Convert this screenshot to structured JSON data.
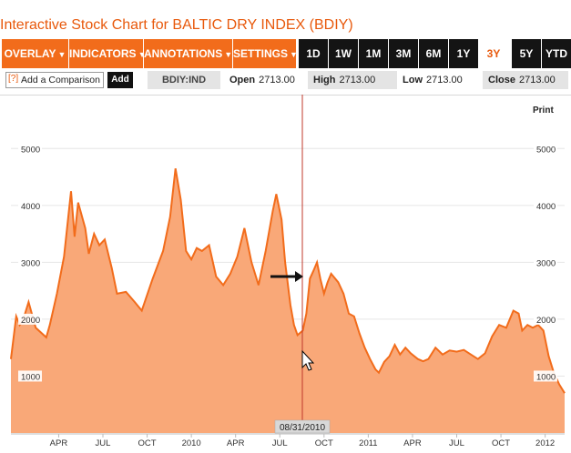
{
  "page": {
    "title": "Interactive Stock Chart for BALTIC DRY INDEX (BDIY)"
  },
  "toolbar": {
    "menus": [
      {
        "label": "OVERLAY",
        "icon": "chevron-down-icon"
      },
      {
        "label": "INDICATORS",
        "icon": "chevron-down-icon"
      },
      {
        "label": "ANNOTATIONS",
        "icon": "chevron-down-icon"
      },
      {
        "label": "SETTINGS",
        "icon": "chevron-down-icon"
      }
    ],
    "ranges": [
      "1D",
      "1W",
      "1M",
      "3M",
      "6M",
      "1Y",
      "3Y",
      "5Y",
      "YTD"
    ],
    "active_range": "3Y",
    "accent_color": "#f26c1b"
  },
  "infobar": {
    "help": "[?]",
    "compare_text": "Add a Comparison",
    "add_label": "Add",
    "ticker": "BDIY:IND",
    "open_label": "Open",
    "open_value": "2713.00",
    "high_label": "High",
    "high_value": "2713.00",
    "low_label": "Low",
    "low_value": "2713.00",
    "close_label": "Close",
    "close_value": "2713.00"
  },
  "print_label": "Print",
  "crosshair": {
    "date_label": "08/31/2010",
    "value": 2713
  },
  "chart_data": {
    "type": "area",
    "series": [
      {
        "values": [
          {
            "t": 2008.98,
            "v": 1300
          },
          {
            "t": 2009.01,
            "v": 2050
          },
          {
            "t": 2009.03,
            "v": 1900
          },
          {
            "t": 2009.05,
            "v": 2000
          },
          {
            "t": 2009.08,
            "v": 2300
          },
          {
            "t": 2009.12,
            "v": 1850
          },
          {
            "t": 2009.18,
            "v": 1680
          },
          {
            "t": 2009.2,
            "v": 1900
          },
          {
            "t": 2009.24,
            "v": 2450
          },
          {
            "t": 2009.28,
            "v": 3100
          },
          {
            "t": 2009.32,
            "v": 4250
          },
          {
            "t": 2009.34,
            "v": 3450
          },
          {
            "t": 2009.36,
            "v": 4050
          },
          {
            "t": 2009.4,
            "v": 3600
          },
          {
            "t": 2009.42,
            "v": 3150
          },
          {
            "t": 2009.45,
            "v": 3500
          },
          {
            "t": 2009.48,
            "v": 3300
          },
          {
            "t": 2009.51,
            "v": 3400
          },
          {
            "t": 2009.55,
            "v": 2900
          },
          {
            "t": 2009.58,
            "v": 2450
          },
          {
            "t": 2009.63,
            "v": 2480
          },
          {
            "t": 2009.68,
            "v": 2300
          },
          {
            "t": 2009.72,
            "v": 2150
          },
          {
            "t": 2009.78,
            "v": 2700
          },
          {
            "t": 2009.84,
            "v": 3200
          },
          {
            "t": 2009.88,
            "v": 3800
          },
          {
            "t": 2009.91,
            "v": 4650
          },
          {
            "t": 2009.94,
            "v": 4100
          },
          {
            "t": 2009.97,
            "v": 3200
          },
          {
            "t": 2010.0,
            "v": 3050
          },
          {
            "t": 2010.03,
            "v": 3250
          },
          {
            "t": 2010.06,
            "v": 3200
          },
          {
            "t": 2010.1,
            "v": 3300
          },
          {
            "t": 2010.14,
            "v": 2750
          },
          {
            "t": 2010.18,
            "v": 2600
          },
          {
            "t": 2010.22,
            "v": 2800
          },
          {
            "t": 2010.26,
            "v": 3100
          },
          {
            "t": 2010.3,
            "v": 3600
          },
          {
            "t": 2010.34,
            "v": 3000
          },
          {
            "t": 2010.38,
            "v": 2600
          },
          {
            "t": 2010.42,
            "v": 3200
          },
          {
            "t": 2010.46,
            "v": 3900
          },
          {
            "t": 2010.48,
            "v": 4200
          },
          {
            "t": 2010.51,
            "v": 3750
          },
          {
            "t": 2010.53,
            "v": 3000
          },
          {
            "t": 2010.56,
            "v": 2250
          },
          {
            "t": 2010.58,
            "v": 1900
          },
          {
            "t": 2010.6,
            "v": 1720
          },
          {
            "t": 2010.63,
            "v": 1800
          },
          {
            "t": 2010.65,
            "v": 2100
          },
          {
            "t": 2010.67,
            "v": 2713
          },
          {
            "t": 2010.69,
            "v": 2850
          },
          {
            "t": 2010.71,
            "v": 3000
          },
          {
            "t": 2010.73,
            "v": 2700
          },
          {
            "t": 2010.75,
            "v": 2450
          },
          {
            "t": 2010.77,
            "v": 2650
          },
          {
            "t": 2010.79,
            "v": 2800
          },
          {
            "t": 2010.83,
            "v": 2650
          },
          {
            "t": 2010.86,
            "v": 2450
          },
          {
            "t": 2010.89,
            "v": 2100
          },
          {
            "t": 2010.92,
            "v": 2050
          },
          {
            "t": 2010.95,
            "v": 1750
          },
          {
            "t": 2010.98,
            "v": 1500
          },
          {
            "t": 2011.01,
            "v": 1300
          },
          {
            "t": 2011.04,
            "v": 1120
          },
          {
            "t": 2011.06,
            "v": 1060
          },
          {
            "t": 2011.09,
            "v": 1250
          },
          {
            "t": 2011.12,
            "v": 1350
          },
          {
            "t": 2011.15,
            "v": 1550
          },
          {
            "t": 2011.18,
            "v": 1380
          },
          {
            "t": 2011.21,
            "v": 1500
          },
          {
            "t": 2011.24,
            "v": 1400
          },
          {
            "t": 2011.28,
            "v": 1300
          },
          {
            "t": 2011.31,
            "v": 1260
          },
          {
            "t": 2011.34,
            "v": 1300
          },
          {
            "t": 2011.38,
            "v": 1500
          },
          {
            "t": 2011.42,
            "v": 1380
          },
          {
            "t": 2011.46,
            "v": 1450
          },
          {
            "t": 2011.5,
            "v": 1430
          },
          {
            "t": 2011.54,
            "v": 1460
          },
          {
            "t": 2011.58,
            "v": 1380
          },
          {
            "t": 2011.62,
            "v": 1300
          },
          {
            "t": 2011.66,
            "v": 1400
          },
          {
            "t": 2011.7,
            "v": 1700
          },
          {
            "t": 2011.74,
            "v": 1900
          },
          {
            "t": 2011.78,
            "v": 1850
          },
          {
            "t": 2011.82,
            "v": 2150
          },
          {
            "t": 2011.85,
            "v": 2100
          },
          {
            "t": 2011.87,
            "v": 1800
          },
          {
            "t": 2011.9,
            "v": 1900
          },
          {
            "t": 2011.93,
            "v": 1850
          },
          {
            "t": 2011.96,
            "v": 1900
          },
          {
            "t": 2011.99,
            "v": 1800
          },
          {
            "t": 2012.02,
            "v": 1350
          },
          {
            "t": 2012.05,
            "v": 1050
          },
          {
            "t": 2012.08,
            "v": 850
          },
          {
            "t": 2012.11,
            "v": 700
          }
        ]
      }
    ],
    "y_ticks": [
      1000,
      2000,
      3000,
      4000,
      5000
    ],
    "x_ticks": [
      {
        "label": "APR",
        "t": 2009.25
      },
      {
        "label": "JUL",
        "t": 2009.5
      },
      {
        "label": "OCT",
        "t": 2009.75
      },
      {
        "label": "2010",
        "t": 2010.0
      },
      {
        "label": "APR",
        "t": 2010.25
      },
      {
        "label": "JUL",
        "t": 2010.5
      },
      {
        "label": "OCT",
        "t": 2010.75
      },
      {
        "label": "2011",
        "t": 2011.0
      },
      {
        "label": "APR",
        "t": 2011.25
      },
      {
        "label": "JUL",
        "t": 2011.5
      },
      {
        "label": "OCT",
        "t": 2011.75
      },
      {
        "label": "2012",
        "t": 2012.0
      }
    ],
    "xlim": [
      2008.98,
      2012.11
    ],
    "ylim": [
      0,
      5500
    ],
    "line_color": "#f26c1b",
    "fill_color": "#f9a878",
    "grid": true,
    "legend": "none"
  }
}
